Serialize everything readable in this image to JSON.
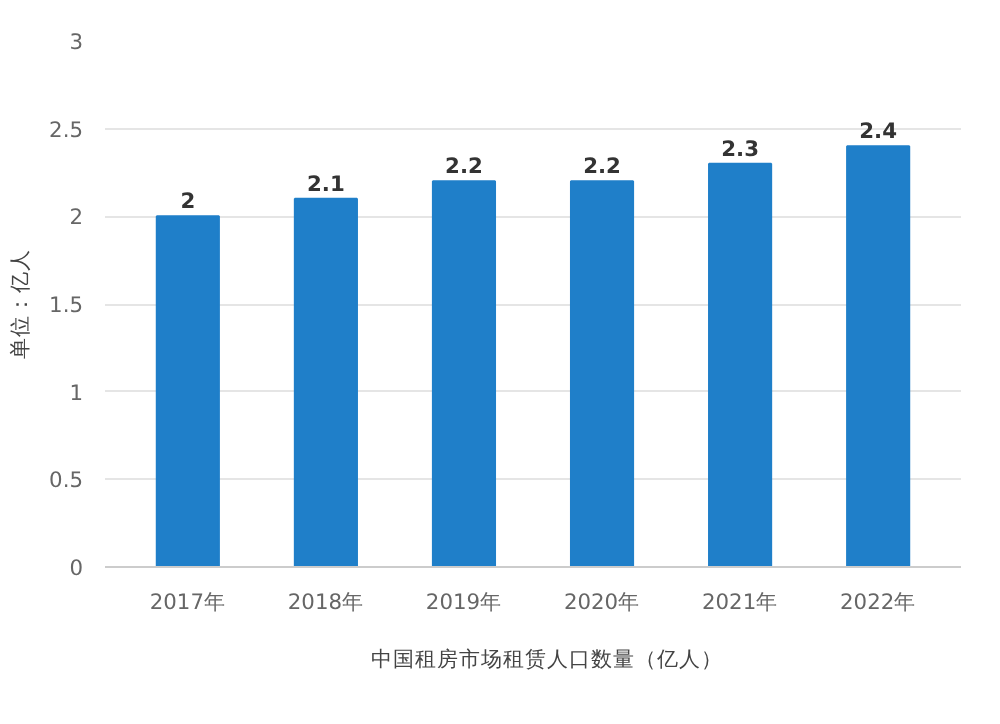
{
  "chart_data": {
    "type": "bar",
    "ylabel": "单位：亿人",
    "categories": [
      "2017年",
      "2018年",
      "2019年",
      "2020年",
      "2021年",
      "2022年"
    ],
    "series": [
      {
        "name": "中国租房市场租赁人口数量（亿人）",
        "color": "#1f7fc9",
        "values": [
          2,
          2.1,
          2.2,
          2.2,
          2.3,
          2.4
        ]
      }
    ],
    "ylim": [
      0,
      3
    ],
    "yticks": [
      0,
      0.5,
      1,
      1.5,
      2,
      2.5,
      3
    ],
    "grid": "y",
    "legend": "bottom",
    "data_labels": true
  }
}
